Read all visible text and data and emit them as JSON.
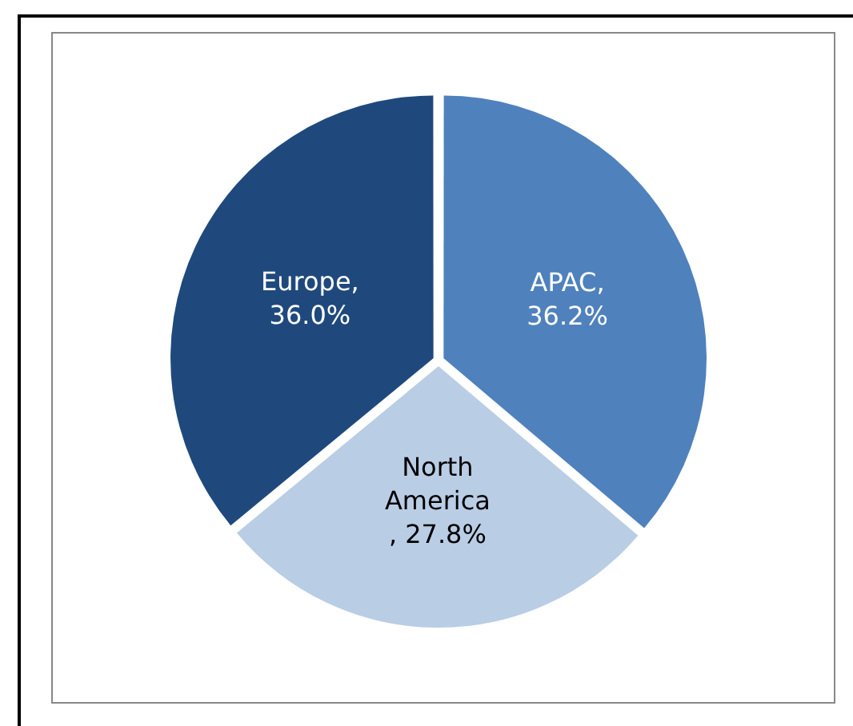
{
  "chart_data": {
    "type": "pie",
    "categories": [
      "APAC",
      "North America",
      "Europe"
    ],
    "values": [
      36.2,
      27.8,
      36.0
    ],
    "colors": [
      "#4f81bd",
      "#b9cde5",
      "#1f497d"
    ],
    "value_labels": [
      ", 36.2%",
      ", 27.8%",
      ", 36.0%"
    ],
    "legend": false
  }
}
